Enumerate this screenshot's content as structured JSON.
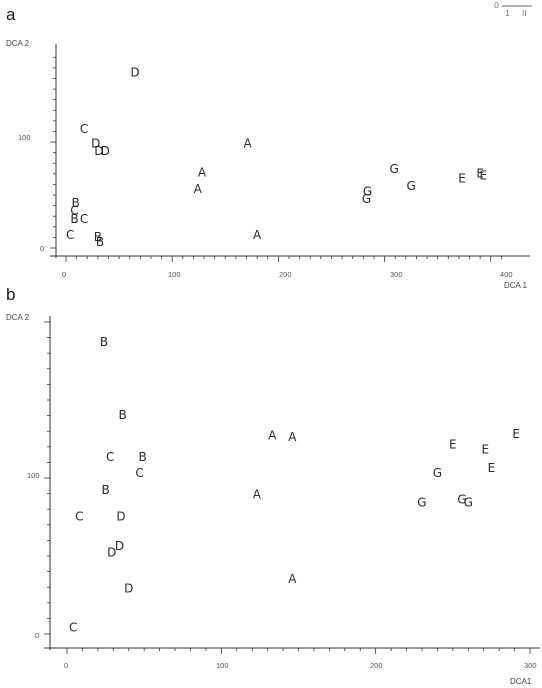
{
  "chart_data": [
    {
      "panel": "a",
      "type": "scatter",
      "xlabel": "DCA 1",
      "ylabel": "DCA 2",
      "xlim": [
        0,
        420
      ],
      "ylim": [
        -5,
        180
      ],
      "xticks": [
        0,
        100,
        200,
        300,
        400
      ],
      "yticks": [
        0,
        100
      ],
      "yticks_labeled": [
        "0",
        "100"
      ],
      "points": [
        {
          "label": "D",
          "x": 65,
          "y": 165
        },
        {
          "label": "C",
          "x": 17,
          "y": 112
        },
        {
          "label": "D",
          "x": 28,
          "y": 98
        },
        {
          "label": "D",
          "x": 31,
          "y": 91
        },
        {
          "label": "D",
          "x": 37,
          "y": 91
        },
        {
          "label": "A",
          "x": 171,
          "y": 98
        },
        {
          "label": "A",
          "x": 128,
          "y": 71
        },
        {
          "label": "A",
          "x": 124,
          "y": 55
        },
        {
          "label": "A",
          "x": 180,
          "y": 12
        },
        {
          "label": "B",
          "x": 9,
          "y": 42
        },
        {
          "label": "C",
          "x": 8,
          "y": 35
        },
        {
          "label": "B",
          "x": 8,
          "y": 27
        },
        {
          "label": "C",
          "x": 17,
          "y": 27
        },
        {
          "label": "C",
          "x": 4,
          "y": 12
        },
        {
          "label": "B",
          "x": 30,
          "y": 10
        },
        {
          "label": "B",
          "x": 32,
          "y": 5
        },
        {
          "label": "G",
          "x": 309,
          "y": 74
        },
        {
          "label": "G",
          "x": 325,
          "y": 58
        },
        {
          "label": "G",
          "x": 284,
          "y": 53
        },
        {
          "label": "G",
          "x": 283,
          "y": 46
        },
        {
          "label": "E",
          "x": 373,
          "y": 65
        },
        {
          "label": "E",
          "x": 390,
          "y": 70
        },
        {
          "label": "E",
          "x": 393,
          "y": 68
        }
      ]
    },
    {
      "panel": "b",
      "type": "scatter",
      "xlabel": "DCA 1",
      "ylabel": "DCA 2",
      "xlim": [
        -10,
        300
      ],
      "ylim": [
        -5,
        212
      ],
      "xticks": [
        0,
        100,
        200,
        300
      ],
      "yticks": [
        0,
        100,
        200
      ],
      "points": [
        {
          "label": "B",
          "x": 24,
          "y": 187
        },
        {
          "label": "B",
          "x": 36,
          "y": 140
        },
        {
          "label": "A",
          "x": 133,
          "y": 127
        },
        {
          "label": "A",
          "x": 146,
          "y": 126
        },
        {
          "label": "C",
          "x": 28,
          "y": 113
        },
        {
          "label": "B",
          "x": 49,
          "y": 113
        },
        {
          "label": "C",
          "x": 47,
          "y": 103
        },
        {
          "label": "B",
          "x": 25,
          "y": 92
        },
        {
          "label": "A",
          "x": 123,
          "y": 89
        },
        {
          "label": "C",
          "x": 8,
          "y": 75
        },
        {
          "label": "D",
          "x": 35,
          "y": 75
        },
        {
          "label": "D",
          "x": 34,
          "y": 56
        },
        {
          "label": "D",
          "x": 29,
          "y": 52
        },
        {
          "label": "D",
          "x": 40,
          "y": 29
        },
        {
          "label": "A",
          "x": 146,
          "y": 35
        },
        {
          "label": "C",
          "x": 4,
          "y": 4
        },
        {
          "label": "E",
          "x": 250,
          "y": 121
        },
        {
          "label": "E",
          "x": 271,
          "y": 118
        },
        {
          "label": "E",
          "x": 291,
          "y": 128
        },
        {
          "label": "E",
          "x": 275,
          "y": 106
        },
        {
          "label": "G",
          "x": 240,
          "y": 103
        },
        {
          "label": "G",
          "x": 230,
          "y": 84
        },
        {
          "label": "G",
          "x": 256,
          "y": 86
        },
        {
          "label": "G",
          "x": 260,
          "y": 84
        }
      ]
    }
  ],
  "labels": {
    "panel_a": "a",
    "panel_b": "b",
    "a_ylabel": "DCA 2",
    "a_xlabel": "DCA 1",
    "b_ylabel": "DCA 2",
    "b_xlabel": "DCA1",
    "a_ytick_100": "100",
    "a_ytick_0": "0",
    "a_xtick_0": "0",
    "a_xtick_100": "100",
    "a_xtick_200": "200",
    "a_xtick_300": "300",
    "a_xtick_400": "400",
    "b_ytick_100": "100",
    "b_ytick_0": "0",
    "b_xtick_0": "0",
    "b_xtick_100": "100",
    "b_xtick_200": "200",
    "b_xtick_300": "300",
    "corner_0": "0",
    "corner_1": "1",
    "corner_II": "II"
  }
}
